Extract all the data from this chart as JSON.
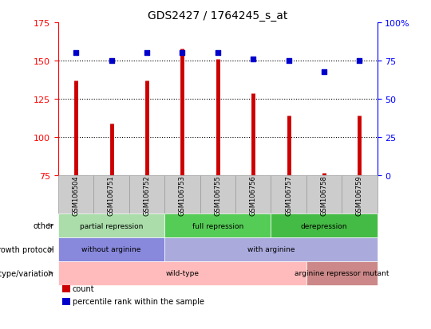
{
  "title": "GDS2427 / 1764245_s_at",
  "samples": [
    "GSM106504",
    "GSM106751",
    "GSM106752",
    "GSM106753",
    "GSM106755",
    "GSM106756",
    "GSM106757",
    "GSM106758",
    "GSM106759"
  ],
  "counts": [
    137,
    109,
    137,
    158,
    151,
    129,
    114,
    77,
    114
  ],
  "percentile_ranks": [
    80,
    75,
    80,
    80,
    80,
    76,
    75,
    68,
    75
  ],
  "ylim_left": [
    75,
    175
  ],
  "ylim_right": [
    0,
    100
  ],
  "yticks_left": [
    75,
    100,
    125,
    150,
    175
  ],
  "yticks_right": [
    0,
    25,
    50,
    75,
    100
  ],
  "bar_color": "#cc0000",
  "dot_color": "#0000cc",
  "annotation_rows": [
    {
      "label": "other",
      "segments": [
        {
          "text": "partial repression",
          "start": 0,
          "end": 3,
          "color": "#aaddaa"
        },
        {
          "text": "full repression",
          "start": 3,
          "end": 6,
          "color": "#55cc55"
        },
        {
          "text": "derepression",
          "start": 6,
          "end": 9,
          "color": "#44bb44"
        }
      ]
    },
    {
      "label": "growth protocol",
      "segments": [
        {
          "text": "without arginine",
          "start": 0,
          "end": 3,
          "color": "#8888dd"
        },
        {
          "text": "with arginine",
          "start": 3,
          "end": 9,
          "color": "#aaaadd"
        }
      ]
    },
    {
      "label": "genotype/variation",
      "segments": [
        {
          "text": "wild-type",
          "start": 0,
          "end": 7,
          "color": "#ffbbbb"
        },
        {
          "text": "arginine repressor mutant",
          "start": 7,
          "end": 9,
          "color": "#cc8888"
        }
      ]
    }
  ],
  "legend_items": [
    {
      "color": "#cc0000",
      "label": "count"
    },
    {
      "color": "#0000cc",
      "label": "percentile rank within the sample"
    }
  ],
  "tick_bg_color": "#cccccc",
  "tick_bg_edge": "#999999"
}
